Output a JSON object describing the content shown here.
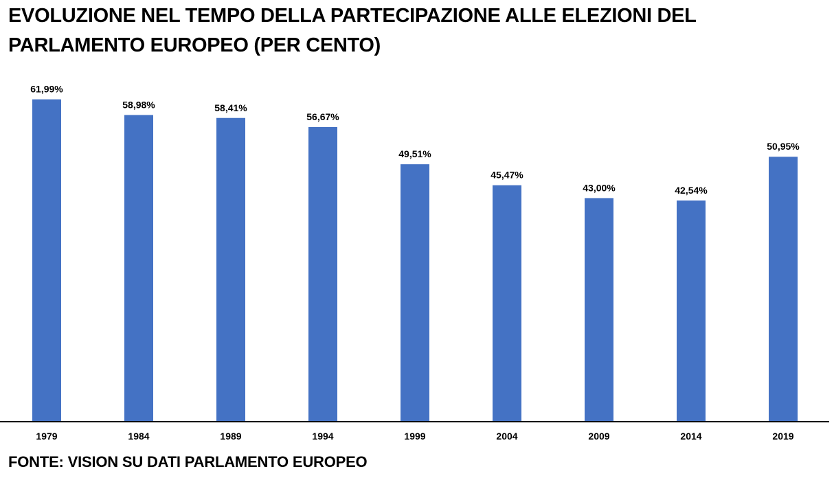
{
  "chart_data": {
    "type": "bar",
    "title": [
      "EVOLUZIONE NEL TEMPO DELLA PARTECIPAZIONE ALLE ELEZIONI DEL",
      "PARLAMENTO EUROPEO (PER CENTO)"
    ],
    "categories": [
      "1979",
      "1984",
      "1989",
      "1994",
      "1999",
      "2004",
      "2009",
      "2014",
      "2019"
    ],
    "values": [
      61.99,
      58.98,
      58.41,
      56.67,
      49.51,
      45.47,
      43.0,
      42.54,
      50.95
    ],
    "data_labels": [
      "61,99%",
      "58,98%",
      "58,41%",
      "56,67%",
      "49,51%",
      "45,47%",
      "43,00%",
      "42,54%",
      "50,95%"
    ],
    "xlabel": "",
    "ylabel": "",
    "ylim": [
      0,
      70
    ],
    "grid": false,
    "legend": "none",
    "bar_color": "#4472C4"
  },
  "source": "FONTE: VISION SU DATI PARLAMENTO EUROPEO"
}
